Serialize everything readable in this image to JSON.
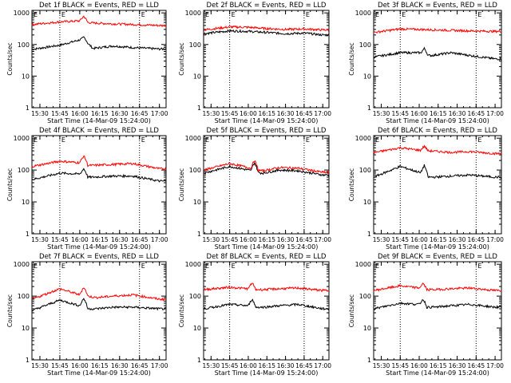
{
  "chart_data": [
    {
      "type": "line",
      "title": "Det 1f BLACK = Events, RED = LLD",
      "xlabel": "Start Time (14-Mar-09 15:24:00)",
      "ylabel": "Counts/sec",
      "x_ticks": [
        "15:30",
        "15:45",
        "16:00",
        "16:15",
        "16:30",
        "16:45",
        "17:00"
      ],
      "y_ticks": [
        "1",
        "10",
        "100",
        "1000"
      ],
      "ylim": [
        1,
        1200
      ],
      "y_scale": "log",
      "markers": [
        {
          "time": "15:45",
          "label": "E"
        },
        {
          "time": "16:45",
          "label": "E"
        }
      ],
      "series": [
        {
          "color": "#000000",
          "x": [
            "15:24",
            "15:45",
            "16:00",
            "16:06",
            "16:10",
            "16:25",
            "16:40",
            "17:00"
          ],
          "values": [
            70,
            95,
            140,
            110,
            75,
            90,
            80,
            72
          ],
          "spike": {
            "time": "16:03",
            "value": 170
          }
        },
        {
          "color": "#ff0000",
          "x": [
            "15:24",
            "15:45",
            "16:00",
            "16:06",
            "16:10",
            "16:25",
            "16:40",
            "17:00"
          ],
          "values": [
            430,
            520,
            560,
            500,
            480,
            450,
            430,
            400
          ],
          "spike": {
            "time": "16:03",
            "value": 780
          }
        }
      ]
    },
    {
      "type": "line",
      "title": "Det 2f BLACK = Events, RED = LLD",
      "xlabel": "Start Time (14-Mar-09 15:24:00)",
      "ylabel": "Counts/sec",
      "x_ticks": [
        "15:30",
        "15:45",
        "16:00",
        "16:15",
        "16:30",
        "16:45",
        "17:00"
      ],
      "y_ticks": [
        "1",
        "10",
        "100",
        "1000"
      ],
      "ylim": [
        1,
        1200
      ],
      "y_scale": "log",
      "markers": [
        {
          "time": "15:45",
          "label": "E"
        },
        {
          "time": "16:45",
          "label": "E"
        }
      ],
      "series": [
        {
          "color": "#000000",
          "x": [
            "15:24",
            "15:45",
            "16:00",
            "16:15",
            "16:30",
            "16:45",
            "17:00"
          ],
          "values": [
            220,
            270,
            260,
            240,
            220,
            230,
            200
          ]
        },
        {
          "color": "#ff0000",
          "x": [
            "15:24",
            "15:45",
            "16:00",
            "16:15",
            "16:30",
            "16:45",
            "17:00"
          ],
          "values": [
            290,
            360,
            350,
            320,
            300,
            310,
            290
          ]
        }
      ]
    },
    {
      "type": "line",
      "title": "Det 3f BLACK = Events, RED = LLD",
      "xlabel": "Start Time (14-Mar-09 15:24:00)",
      "ylabel": "Counts/sec",
      "x_ticks": [
        "15:30",
        "15:45",
        "16:00",
        "16:15",
        "16:30",
        "16:45",
        "17:00"
      ],
      "y_ticks": [
        "1",
        "10",
        "100",
        "1000"
      ],
      "ylim": [
        1,
        1200
      ],
      "y_scale": "log",
      "markers": [
        {
          "time": "15:45",
          "label": "E"
        },
        {
          "time": "16:45",
          "label": "E"
        }
      ],
      "series": [
        {
          "color": "#000000",
          "x": [
            "15:24",
            "15:45",
            "16:00",
            "16:06",
            "16:10",
            "16:25",
            "16:40",
            "17:00"
          ],
          "values": [
            40,
            55,
            55,
            45,
            45,
            55,
            45,
            35
          ],
          "spike": {
            "time": "16:04",
            "value": 75
          }
        },
        {
          "color": "#ff0000",
          "x": [
            "15:24",
            "15:45",
            "16:00",
            "16:25",
            "16:40",
            "17:00"
          ],
          "values": [
            240,
            310,
            300,
            280,
            270,
            260
          ]
        }
      ]
    },
    {
      "type": "line",
      "title": "Det 4f BLACK = Events, RED = LLD",
      "xlabel": "Start Time (14-Mar-09 15:24:00)",
      "ylabel": "Counts/sec",
      "x_ticks": [
        "15:30",
        "15:45",
        "16:00",
        "16:15",
        "16:30",
        "16:45",
        "17:00"
      ],
      "y_ticks": [
        "1",
        "10",
        "100",
        "1000"
      ],
      "ylim": [
        1,
        1200
      ],
      "y_scale": "log",
      "markers": [
        {
          "time": "15:45",
          "label": "E"
        },
        {
          "time": "16:45",
          "label": "E"
        }
      ],
      "series": [
        {
          "color": "#000000",
          "x": [
            "15:24",
            "15:45",
            "16:00",
            "16:06",
            "16:10",
            "16:25",
            "16:40",
            "17:00"
          ],
          "values": [
            50,
            80,
            75,
            60,
            60,
            65,
            65,
            45
          ],
          "spike": {
            "time": "16:03",
            "value": 110
          }
        },
        {
          "color": "#ff0000",
          "x": [
            "15:24",
            "15:45",
            "16:00",
            "16:06",
            "16:10",
            "16:25",
            "16:40",
            "17:00"
          ],
          "values": [
            130,
            190,
            170,
            140,
            140,
            150,
            160,
            110
          ],
          "spike": {
            "time": "16:03",
            "value": 280
          }
        }
      ]
    },
    {
      "type": "line",
      "title": "Det 5f BLACK = Events, RED = LLD",
      "xlabel": "Start Time (14-Mar-09 15:24:00)",
      "ylabel": "Counts/sec",
      "x_ticks": [
        "15:30",
        "15:45",
        "16:00",
        "16:15",
        "16:30",
        "16:45",
        "17:00"
      ],
      "y_ticks": [
        "1",
        "10",
        "100",
        "1000"
      ],
      "ylim": [
        1,
        1200
      ],
      "y_scale": "log",
      "markers": [
        {
          "time": "15:45",
          "label": "E"
        },
        {
          "time": "16:45",
          "label": "E"
        }
      ],
      "series": [
        {
          "color": "#000000",
          "x": [
            "15:24",
            "15:45",
            "16:00",
            "16:06",
            "16:12",
            "16:25",
            "16:40",
            "17:00"
          ],
          "values": [
            80,
            130,
            100,
            85,
            80,
            100,
            95,
            70
          ],
          "spike": {
            "time": "16:05",
            "value": 170
          }
        },
        {
          "color": "#ff0000",
          "x": [
            "15:24",
            "15:45",
            "16:00",
            "16:06",
            "16:12",
            "16:25",
            "16:40",
            "17:00"
          ],
          "values": [
            100,
            160,
            120,
            100,
            95,
            120,
            115,
            85
          ],
          "spike": {
            "time": "16:05",
            "value": 200
          }
        }
      ]
    },
    {
      "type": "line",
      "title": "Det 6f BLACK = Events, RED = LLD",
      "xlabel": "Start Time (14-Mar-09 15:24:00)",
      "ylabel": "Counts/sec",
      "x_ticks": [
        "15:30",
        "15:45",
        "16:00",
        "16:15",
        "16:30",
        "16:45",
        "17:00"
      ],
      "y_ticks": [
        "1",
        "10",
        "100",
        "1000"
      ],
      "ylim": [
        1,
        1200
      ],
      "y_scale": "log",
      "markers": [
        {
          "time": "15:45",
          "label": "E"
        },
        {
          "time": "16:45",
          "label": "E"
        }
      ],
      "series": [
        {
          "color": "#000000",
          "x": [
            "15:24",
            "15:45",
            "16:00",
            "16:06",
            "16:12",
            "16:25",
            "16:40",
            "17:00"
          ],
          "values": [
            60,
            130,
            85,
            60,
            60,
            65,
            70,
            60
          ],
          "spike": {
            "time": "16:04",
            "value": 140
          }
        },
        {
          "color": "#ff0000",
          "x": [
            "15:24",
            "15:45",
            "16:00",
            "16:25",
            "16:40",
            "17:00"
          ],
          "values": [
            350,
            500,
            420,
            360,
            380,
            330
          ],
          "spike": {
            "time": "16:04",
            "value": 560
          }
        }
      ]
    },
    {
      "type": "line",
      "title": "Det 7f BLACK = Events, RED = LLD",
      "xlabel": "Start Time (14-Mar-09 15:24:00)",
      "ylabel": "Counts/sec",
      "x_ticks": [
        "15:30",
        "15:45",
        "16:00",
        "16:15",
        "16:30",
        "16:45",
        "17:00"
      ],
      "y_ticks": [
        "1",
        "10",
        "100",
        "1000"
      ],
      "ylim": [
        1,
        1200
      ],
      "y_scale": "log",
      "markers": [
        {
          "time": "15:45",
          "label": "E"
        },
        {
          "time": "16:45",
          "label": "E"
        }
      ],
      "series": [
        {
          "color": "#000000",
          "x": [
            "15:24",
            "15:45",
            "16:00",
            "16:06",
            "16:12",
            "16:25",
            "16:40",
            "17:00"
          ],
          "values": [
            35,
            75,
            50,
            40,
            40,
            45,
            45,
            40
          ],
          "spike": {
            "time": "16:03",
            "value": 85
          }
        },
        {
          "color": "#ff0000",
          "x": [
            "15:24",
            "15:45",
            "16:00",
            "16:06",
            "16:12",
            "16:25",
            "16:40",
            "17:00"
          ],
          "values": [
            80,
            170,
            110,
            100,
            90,
            100,
            110,
            80
          ],
          "spike": {
            "time": "16:03",
            "value": 190
          }
        }
      ]
    },
    {
      "type": "line",
      "title": "Det 8f BLACK = Events, RED = LLD",
      "xlabel": "Start Time (14-Mar-09 15:24:00)",
      "ylabel": "Counts/sec",
      "x_ticks": [
        "15:30",
        "15:45",
        "16:00",
        "16:15",
        "16:30",
        "16:45",
        "17:00"
      ],
      "y_ticks": [
        "1",
        "10",
        "100",
        "1000"
      ],
      "ylim": [
        1,
        1200
      ],
      "y_scale": "log",
      "markers": [
        {
          "time": "15:45",
          "label": "E"
        },
        {
          "time": "16:45",
          "label": "E"
        }
      ],
      "series": [
        {
          "color": "#000000",
          "x": [
            "15:24",
            "15:45",
            "16:00",
            "16:06",
            "16:12",
            "16:25",
            "16:40",
            "17:00"
          ],
          "values": [
            40,
            55,
            50,
            45,
            45,
            50,
            55,
            40
          ],
          "spike": {
            "time": "16:03",
            "value": 80
          }
        },
        {
          "color": "#ff0000",
          "x": [
            "15:24",
            "15:45",
            "16:00",
            "16:06",
            "16:12",
            "16:25",
            "16:40",
            "17:00"
          ],
          "values": [
            160,
            190,
            170,
            160,
            160,
            170,
            180,
            150
          ],
          "spike": {
            "time": "16:03",
            "value": 260
          }
        }
      ]
    },
    {
      "type": "line",
      "title": "Det 9f BLACK = Events, RED = LLD",
      "xlabel": "Start Time (14-Mar-09 15:24:00)",
      "ylabel": "Counts/sec",
      "x_ticks": [
        "15:30",
        "15:45",
        "16:00",
        "16:15",
        "16:30",
        "16:45",
        "17:00"
      ],
      "y_ticks": [
        "1",
        "10",
        "100",
        "1000"
      ],
      "ylim": [
        1,
        1200
      ],
      "y_scale": "log",
      "markers": [
        {
          "time": "15:45",
          "label": "E"
        },
        {
          "time": "16:45",
          "label": "E"
        }
      ],
      "series": [
        {
          "color": "#000000",
          "x": [
            "15:24",
            "15:45",
            "16:00",
            "16:06",
            "16:12",
            "16:25",
            "16:40",
            "17:00"
          ],
          "values": [
            40,
            60,
            55,
            45,
            45,
            50,
            55,
            45
          ],
          "spike": {
            "time": "16:03",
            "value": 80
          }
        },
        {
          "color": "#ff0000",
          "x": [
            "15:24",
            "15:45",
            "16:00",
            "16:06",
            "16:12",
            "16:25",
            "16:40",
            "17:00"
          ],
          "values": [
            150,
            210,
            180,
            160,
            160,
            170,
            180,
            150
          ],
          "spike": {
            "time": "16:03",
            "value": 250
          }
        }
      ]
    }
  ]
}
